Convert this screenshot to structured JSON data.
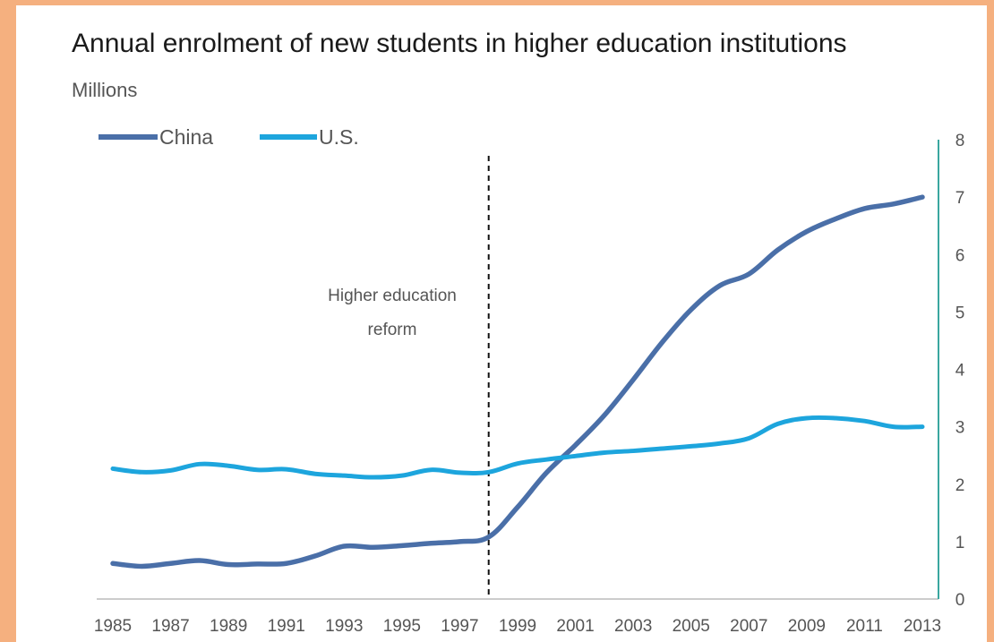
{
  "colors": {
    "background": "#f5b07f",
    "china": "#4a6fa8",
    "us": "#1da5dd",
    "axis": "#3aa7a0"
  },
  "chart_data": {
    "type": "line",
    "title": "Annual enrolment of new students in higher education institutions",
    "ylabel": "Millions",
    "xlabel": "",
    "ylim": [
      0,
      8
    ],
    "yticks": [
      "0",
      "1",
      "2",
      "3",
      "4",
      "5",
      "6",
      "7",
      "8"
    ],
    "xticks": [
      "1985",
      "1987",
      "1989",
      "1991",
      "1993",
      "1995",
      "1997",
      "1999",
      "2001",
      "2003",
      "2005",
      "2007",
      "2009",
      "2011",
      "2013"
    ],
    "x": [
      1985,
      1986,
      1987,
      1988,
      1989,
      1990,
      1991,
      1992,
      1993,
      1994,
      1995,
      1996,
      1997,
      1998,
      1999,
      2000,
      2001,
      2002,
      2003,
      2004,
      2005,
      2006,
      2007,
      2008,
      2009,
      2010,
      2011,
      2012,
      2013
    ],
    "series": [
      {
        "name": "China",
        "color": "#4a6fa8",
        "values": [
          0.62,
          0.57,
          0.62,
          0.67,
          0.6,
          0.61,
          0.62,
          0.75,
          0.92,
          0.9,
          0.93,
          0.97,
          1.0,
          1.08,
          1.6,
          2.2,
          2.68,
          3.2,
          3.82,
          4.47,
          5.04,
          5.46,
          5.66,
          6.08,
          6.4,
          6.62,
          6.8,
          6.88,
          7.0
        ]
      },
      {
        "name": "U.S.",
        "color": "#1da5dd",
        "values": [
          2.27,
          2.21,
          2.24,
          2.35,
          2.32,
          2.25,
          2.26,
          2.18,
          2.15,
          2.12,
          2.15,
          2.25,
          2.2,
          2.21,
          2.36,
          2.43,
          2.49,
          2.55,
          2.58,
          2.62,
          2.66,
          2.71,
          2.8,
          3.05,
          3.15,
          3.15,
          3.1,
          3.0,
          3.0
        ]
      }
    ],
    "legend": "top-left",
    "annotations": [
      {
        "x": 1998,
        "lines": [
          "Higher education",
          "reform"
        ],
        "style": "dashed-vertical-line"
      }
    ]
  }
}
